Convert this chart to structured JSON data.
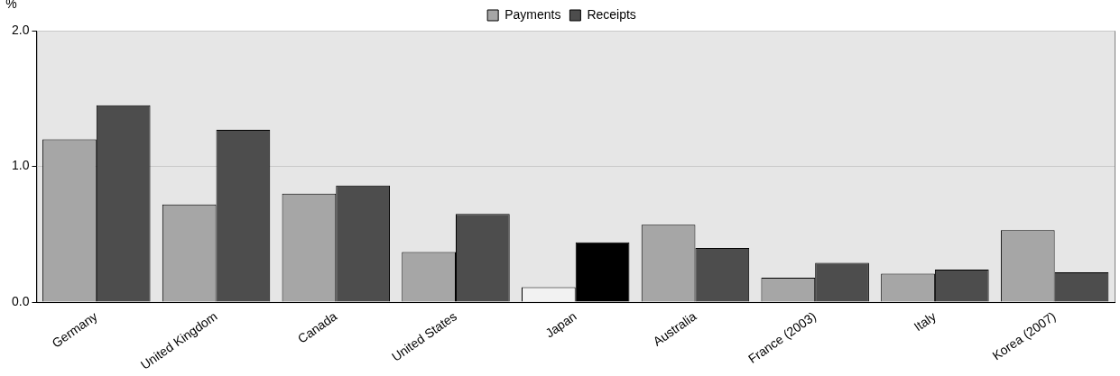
{
  "chart_data": {
    "type": "bar",
    "ylabel": "%",
    "categories": [
      "Germany",
      "United Kingdom",
      "Canada",
      "United States",
      "Japan",
      "Australia",
      "France (2003)",
      "Italy",
      "Korea (2007)"
    ],
    "series": [
      {
        "name": "Payments",
        "color": "#a6a6a6",
        "colors": [
          "#a6a6a6",
          "#a6a6a6",
          "#a6a6a6",
          "#a6a6a6",
          "#f2f2f2",
          "#a6a6a6",
          "#a6a6a6",
          "#a6a6a6",
          "#a6a6a6"
        ],
        "values": [
          1.2,
          0.72,
          0.8,
          0.37,
          0.11,
          0.57,
          0.18,
          0.21,
          0.53
        ]
      },
      {
        "name": "Receipts",
        "color": "#4d4d4d",
        "colors": [
          "#4d4d4d",
          "#4d4d4d",
          "#4d4d4d",
          "#4d4d4d",
          "#000000",
          "#4d4d4d",
          "#4d4d4d",
          "#4d4d4d",
          "#4d4d4d"
        ],
        "values": [
          1.45,
          1.27,
          0.86,
          0.65,
          0.44,
          0.4,
          0.29,
          0.24,
          0.22
        ]
      }
    ],
    "ylim": [
      0,
      2
    ],
    "yticks": [
      {
        "value": 0,
        "label": "0.0"
      },
      {
        "value": 1,
        "label": "1.0"
      },
      {
        "value": 2,
        "label": "2.0"
      }
    ],
    "grid": "y",
    "legend": "top"
  }
}
